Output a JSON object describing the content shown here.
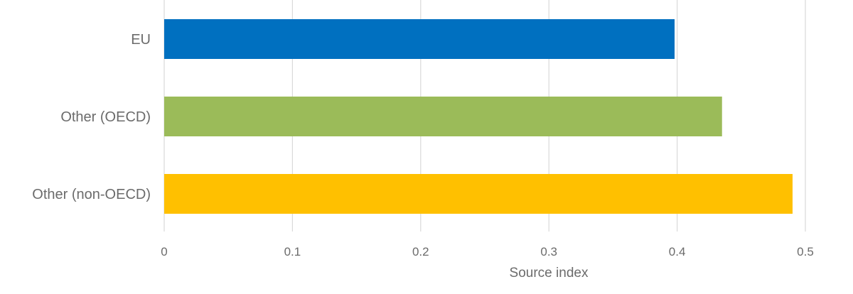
{
  "chart_data": {
    "type": "bar",
    "orientation": "horizontal",
    "categories": [
      "EU",
      "Other (OECD)",
      "Other (non-OECD)"
    ],
    "values": [
      0.398,
      0.435,
      0.49
    ],
    "colors": [
      "#0070C0",
      "#9BBB59",
      "#FFC000"
    ],
    "title": "",
    "xlabel": "Source index",
    "ylabel": "",
    "xlim": [
      0,
      0.5
    ],
    "x_ticks": [
      0,
      0.1,
      0.2,
      0.3,
      0.4,
      0.5
    ],
    "x_tick_labels": [
      "0",
      "0.1",
      "0.2",
      "0.3",
      "0.4",
      "0.5"
    ],
    "grid": "vertical",
    "legend": "none"
  }
}
